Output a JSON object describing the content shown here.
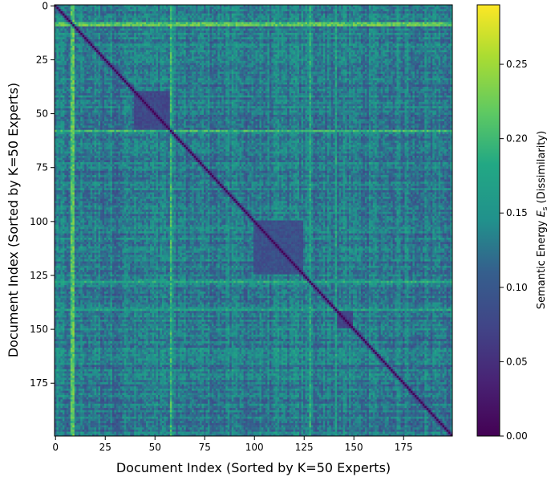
{
  "chart_data": {
    "type": "heatmap",
    "title": "",
    "xlabel": "Document Index (Sorted by K=50 Experts)",
    "ylabel": "Document Index (Sorted by K=50 Experts)",
    "n": 200,
    "x_ticks": [
      0,
      25,
      50,
      75,
      100,
      125,
      150,
      175
    ],
    "y_ticks": [
      0,
      25,
      50,
      75,
      100,
      125,
      150,
      175
    ],
    "colormap": "viridis",
    "colorbar": {
      "label": "Semantic Energy Es (Dissimilarity)",
      "label_prefix": "Semantic Energy ",
      "label_symbol": "E",
      "label_subscript": "s",
      "label_suffix": " (Dissimilarity)",
      "min": 0.0,
      "max": 0.29,
      "ticks": [
        "0.00",
        "0.05",
        "0.10",
        "0.15",
        "0.20",
        "0.25"
      ]
    },
    "base_level": 0.13,
    "diagonal_value": 0.0,
    "outlier_rows_cols": [
      {
        "index": 9,
        "value": 0.22
      },
      {
        "index": 8,
        "value": 0.21
      }
    ],
    "bright_lines": [
      {
        "index": 58,
        "value": 0.2
      },
      {
        "index": 128,
        "value": 0.18
      },
      {
        "index": 141,
        "value": 0.17
      }
    ],
    "dark_blocks": [
      {
        "start": 40,
        "end": 58,
        "value": 0.08
      },
      {
        "start": 100,
        "end": 125,
        "value": 0.09
      },
      {
        "start": 141,
        "end": 150,
        "value": 0.07
      }
    ]
  }
}
